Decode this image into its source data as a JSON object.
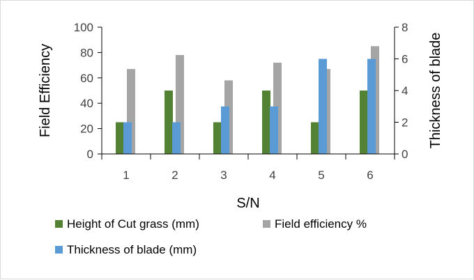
{
  "chart_data": {
    "type": "bar",
    "xlabel": "S/N",
    "ylabel": "Field Efficiency",
    "y2label": "Thickness of blade",
    "categories": [
      "1",
      "2",
      "3",
      "4",
      "5",
      "6"
    ],
    "ylim": [
      0,
      100
    ],
    "yticks": [
      0,
      20,
      40,
      60,
      80,
      100
    ],
    "y2lim": [
      0,
      8
    ],
    "y2ticks": [
      0,
      2,
      4,
      6,
      8
    ],
    "grid": false,
    "legend_position": "bottom",
    "series": [
      {
        "name": "Height of Cut grass (mm)",
        "axis": "left",
        "color": "#548235",
        "values": [
          25,
          50,
          25,
          50,
          25,
          50
        ]
      },
      {
        "name": "Field efficiency %",
        "axis": "left",
        "color": "#a5a5a5",
        "values": [
          67,
          78,
          58,
          72,
          67,
          85
        ]
      },
      {
        "name": "Thickness of blade (mm)",
        "axis": "right",
        "color": "#5b9bd5",
        "values": [
          2,
          2,
          3,
          3,
          6,
          6
        ]
      }
    ]
  }
}
